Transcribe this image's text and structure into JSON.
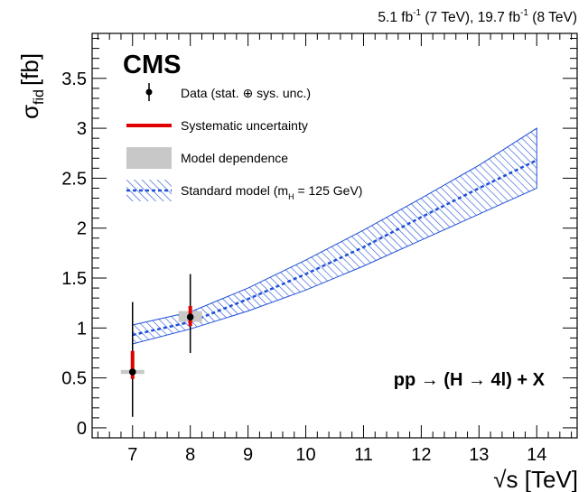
{
  "header": {
    "lumi_part1": "5.1 fb",
    "lumi_sup1": "-1",
    "lumi_part2": " (7 TeV), 19.7 fb",
    "lumi_sup2": "-1",
    "lumi_part3": " (8 TeV)"
  },
  "experiment_label": "CMS",
  "process_label": "pp → (H → 4l) + X",
  "chart_data": {
    "type": "scatter",
    "xlabel": "√s [TeV]",
    "ylabel_main": "σ",
    "ylabel_sub": "fid",
    "ylabel_unit": "[fb]",
    "xlim": [
      6.3,
      14.7
    ],
    "ylim": [
      -0.1,
      3.95
    ],
    "xticks": [
      "7",
      "8",
      "9",
      "10",
      "11",
      "12",
      "13",
      "14"
    ],
    "yticks": [
      "0",
      "0.5",
      "1",
      "1.5",
      "2",
      "2.5",
      "3",
      "3.5"
    ],
    "legend": {
      "position": "top-left",
      "data": "Data (stat. ⊕ sys. unc.)",
      "syst": "Systematic uncertainty",
      "model": "Model dependence",
      "sm_prefix": "Standard model (m",
      "sm_sub": "H",
      "sm_suffix": " = 125 GeV)"
    },
    "data_points": [
      {
        "x": 7,
        "y": 0.56,
        "total_lo": 0.11,
        "total_hi": 1.26,
        "syst_lo": 0.49,
        "syst_hi": 0.77,
        "model_lo": 0.54,
        "model_hi": 0.58
      },
      {
        "x": 8,
        "y": 1.11,
        "total_lo": 0.75,
        "total_hi": 1.54,
        "syst_lo": 1.02,
        "syst_hi": 1.22,
        "model_lo": 1.06,
        "model_hi": 1.17
      }
    ],
    "standard_model": {
      "x": [
        7,
        8,
        9,
        10,
        11,
        12,
        13,
        14
      ],
      "central": [
        0.93,
        1.06,
        1.29,
        1.54,
        1.81,
        2.11,
        2.4,
        2.68
      ],
      "lower": [
        0.84,
        0.99,
        1.17,
        1.38,
        1.62,
        1.88,
        2.14,
        2.4
      ],
      "upper": [
        1.03,
        1.16,
        1.4,
        1.68,
        1.98,
        2.3,
        2.63,
        3.0
      ]
    },
    "colors": {
      "band": "#1f4fd8",
      "central_line": "#1f4fd8",
      "systematic": "#e00000",
      "model": "#c8c8c8",
      "data": "#000000"
    }
  }
}
